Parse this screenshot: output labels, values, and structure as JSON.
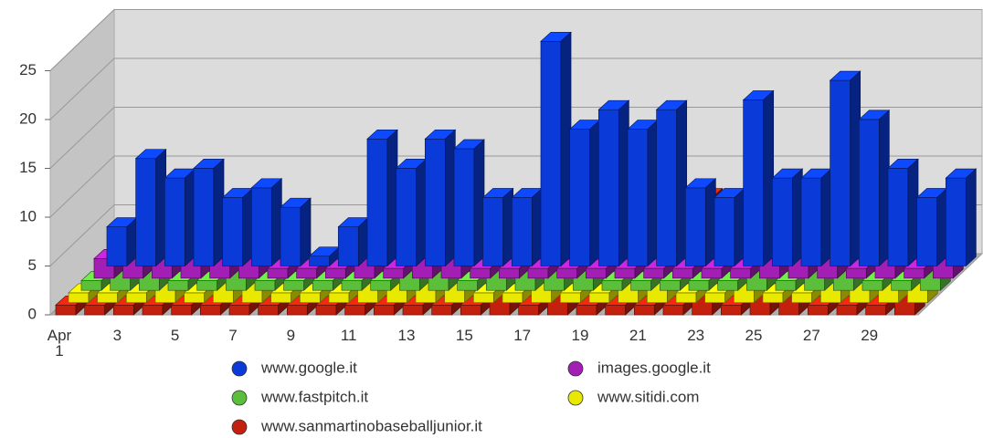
{
  "chart_data": {
    "type": "bar3d",
    "categories": [
      "Apr 1",
      null,
      "3",
      null,
      "5",
      null,
      "7",
      null,
      "9",
      null,
      "11",
      null,
      "13",
      null,
      "15",
      null,
      "17",
      null,
      "19",
      null,
      "21",
      null,
      "23",
      null,
      "25",
      null,
      "27",
      null,
      "29",
      null
    ],
    "ylim": [
      0,
      25
    ],
    "yticks": [
      0,
      5,
      10,
      15,
      20,
      25
    ],
    "grid": true,
    "series": [
      {
        "name": "www.google.it",
        "color": "#0a3ad8",
        "values": [
          4,
          11,
          9,
          10,
          7,
          8,
          6,
          1,
          4,
          13,
          10,
          13,
          12,
          7,
          7,
          23,
          14,
          16,
          14,
          16,
          8,
          7,
          17,
          9,
          9,
          19,
          15,
          10,
          7,
          9
        ]
      },
      {
        "name": "images.google.it",
        "color": "#a21eb4",
        "values": [
          2,
          4,
          6,
          4,
          5,
          5,
          1,
          1,
          1,
          4,
          1,
          3,
          2,
          1,
          1,
          1,
          1,
          1,
          1,
          1,
          1,
          1,
          1,
          2,
          4,
          2,
          1,
          2,
          1,
          2
        ]
      },
      {
        "name": "www.fastpitch.it",
        "color": "#5cbf3c",
        "values": [
          1,
          2,
          3,
          1,
          1,
          4,
          1,
          1,
          1,
          1,
          1,
          2,
          2,
          1,
          3,
          3,
          5,
          3,
          1,
          1,
          1,
          1,
          1,
          2,
          1,
          4,
          3,
          1,
          1,
          3
        ]
      },
      {
        "name": "www.sitidi.com",
        "color": "#e8e800",
        "values": [
          1,
          1,
          1,
          2,
          1,
          3,
          3,
          1,
          1,
          1,
          2,
          3,
          3,
          2,
          1,
          1,
          2,
          1,
          1,
          3,
          3,
          1,
          1,
          2,
          1,
          1,
          2,
          3,
          3,
          2
        ]
      },
      {
        "name": "www.sanmartinobaseballjunior.it",
        "color": "#c4200e",
        "values": [
          1,
          1,
          1,
          1,
          1,
          1,
          1,
          1,
          1,
          1,
          1,
          1,
          1,
          1,
          1,
          9,
          1,
          2,
          1,
          1,
          1,
          1,
          12,
          1,
          3,
          2,
          1,
          1,
          1,
          2
        ]
      }
    ]
  }
}
